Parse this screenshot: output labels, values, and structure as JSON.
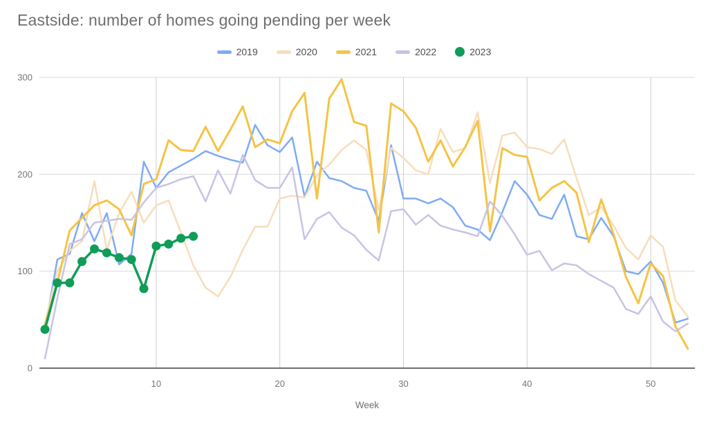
{
  "title": "Eastside: number of homes going pending per week",
  "chart_data": {
    "type": "line",
    "title": "Eastside: number of homes going pending per week",
    "xlabel": "Week",
    "ylabel": "",
    "x_range": [
      1,
      53
    ],
    "ylim": [
      0,
      300
    ],
    "y_ticks": [
      0,
      100,
      200,
      300
    ],
    "x_ticks": [
      10,
      20,
      30,
      40,
      50
    ],
    "grid": true,
    "legend_position": "top",
    "background": "#ffffff",
    "gridline_color": "#d9d9d9",
    "baseline_color": "#3c4043",
    "series": [
      {
        "name": "2019",
        "color": "#7dabf5",
        "marker": false,
        "values": [
          40,
          112,
          118,
          160,
          131,
          160,
          107,
          118,
          213,
          186,
          202,
          209,
          216,
          224,
          219,
          215,
          212,
          251,
          230,
          223,
          238,
          177,
          213,
          196,
          193,
          186,
          183,
          152,
          230,
          175,
          175,
          170,
          175,
          166,
          147,
          143,
          132,
          161,
          193,
          179,
          158,
          154,
          179,
          136,
          133,
          155,
          136,
          100,
          97,
          110,
          88,
          47,
          51
        ]
      },
      {
        "name": "2020",
        "color": "#f7ddb9",
        "marker": false,
        "values": [
          46,
          100,
          121,
          131,
          193,
          122,
          160,
          182,
          150,
          168,
          173,
          140,
          106,
          83,
          74,
          94,
          122,
          146,
          146,
          175,
          178,
          176,
          199,
          210,
          225,
          235,
          225,
          163,
          227,
          217,
          204,
          200,
          247,
          223,
          227,
          264,
          191,
          240,
          243,
          228,
          226,
          221,
          236,
          196,
          158,
          166,
          147,
          124,
          112,
          137,
          125,
          70,
          53
        ]
      },
      {
        "name": "2021",
        "color": "#f5c344",
        "marker": false,
        "values": [
          45,
          88,
          142,
          155,
          168,
          173,
          164,
          137,
          190,
          195,
          235,
          225,
          224,
          249,
          224,
          246,
          270,
          228,
          236,
          232,
          265,
          284,
          175,
          278,
          298,
          254,
          250,
          140,
          273,
          265,
          248,
          213,
          235,
          208,
          228,
          255,
          141,
          227,
          220,
          218,
          173,
          186,
          193,
          181,
          130,
          174,
          138,
          94,
          67,
          108,
          95,
          43,
          20
        ]
      },
      {
        "name": "2022",
        "color": "#c8c2e4",
        "marker": false,
        "values": [
          10,
          72,
          128,
          133,
          150,
          152,
          154,
          153,
          171,
          186,
          190,
          195,
          198,
          172,
          204,
          180,
          220,
          194,
          186,
          186,
          207,
          133,
          154,
          161,
          145,
          137,
          122,
          111,
          162,
          164,
          148,
          158,
          147,
          143,
          140,
          136,
          172,
          157,
          138,
          117,
          121,
          101,
          108,
          106,
          97,
          90,
          83,
          61,
          56,
          74,
          48,
          38,
          46
        ]
      },
      {
        "name": "2023",
        "color": "#0f9d58",
        "marker": true,
        "values": [
          40,
          88,
          88,
          110,
          123,
          119,
          114,
          112,
          82,
          126,
          128,
          134,
          136
        ]
      }
    ]
  }
}
